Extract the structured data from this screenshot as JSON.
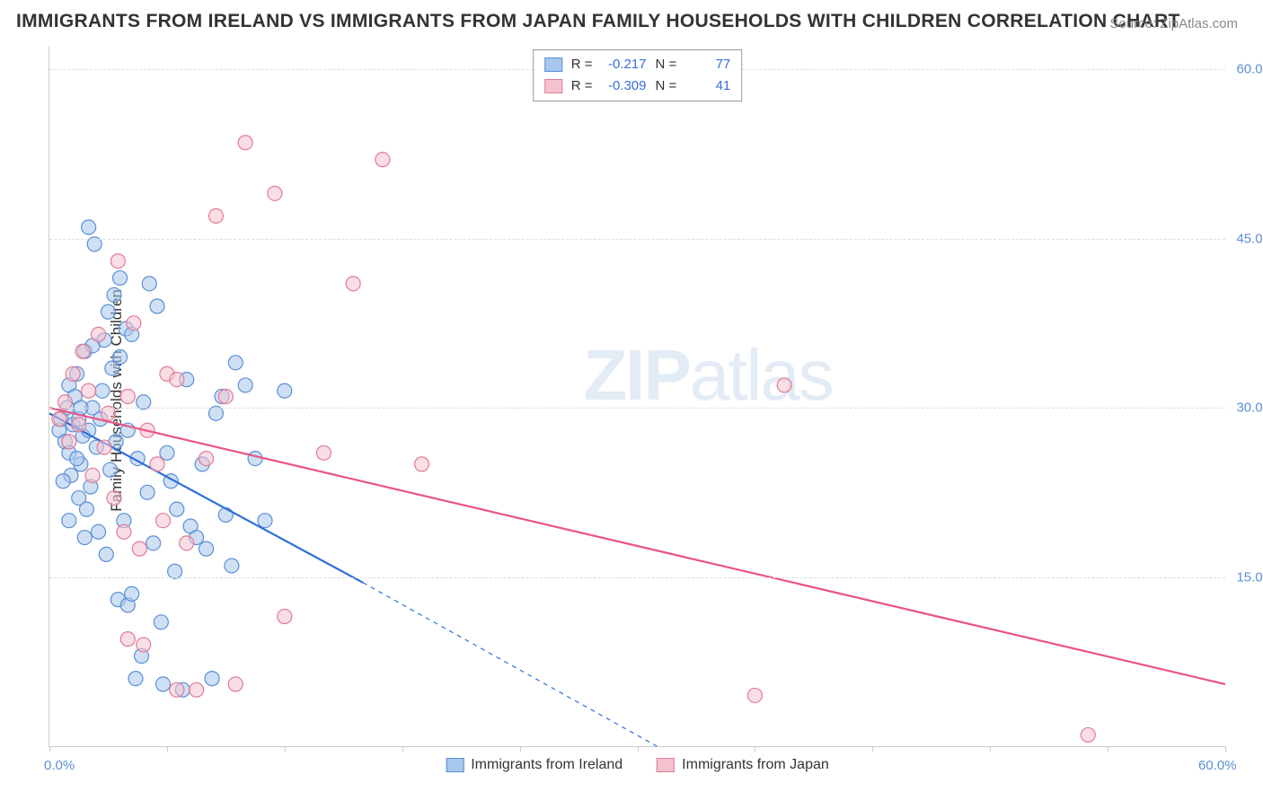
{
  "title": "IMMIGRANTS FROM IRELAND VS IMMIGRANTS FROM JAPAN FAMILY HOUSEHOLDS WITH CHILDREN CORRELATION CHART",
  "source": "Source: ZipAtlas.com",
  "y_axis_label": "Family Households with Children",
  "watermark_bold": "ZIP",
  "watermark_rest": "atlas",
  "chart": {
    "type": "scatter",
    "xlim": [
      0,
      60
    ],
    "ylim": [
      0,
      62
    ],
    "x_ticks": [
      0,
      6,
      12,
      18,
      24,
      30,
      36,
      42,
      48,
      54,
      60
    ],
    "x_tick_labels": {
      "0": "0.0%",
      "60": "60.0%"
    },
    "y_ticks": [
      15,
      30,
      45,
      60
    ],
    "y_tick_labels": {
      "15": "15.0%",
      "30": "30.0%",
      "45": "45.0%",
      "60": "60.0%"
    },
    "background_color": "#ffffff",
    "grid_color": "#dddddd",
    "marker_radius": 8,
    "marker_opacity": 0.55,
    "marker_stroke_width": 1.2,
    "series": [
      {
        "name": "Immigrants from Ireland",
        "fill_color": "#a7c7ec",
        "stroke_color": "#5b8fd6",
        "line_color": "#2e6fd8",
        "R": "-0.217",
        "N": "77",
        "trend_line": {
          "x1": 0,
          "y1": 29.5,
          "x2": 16,
          "y2": 14.5
        },
        "trend_line_ext": {
          "x1": 16,
          "y1": 14.5,
          "x2": 31,
          "y2": 0
        },
        "line_width": 2.2,
        "points": [
          [
            0.5,
            28
          ],
          [
            0.6,
            29
          ],
          [
            0.8,
            27
          ],
          [
            0.9,
            30
          ],
          [
            1.0,
            26
          ],
          [
            1.0,
            32
          ],
          [
            1.1,
            24
          ],
          [
            1.2,
            28.5
          ],
          [
            1.3,
            31
          ],
          [
            1.4,
            33
          ],
          [
            1.5,
            22
          ],
          [
            1.5,
            29
          ],
          [
            1.6,
            25
          ],
          [
            1.7,
            27.5
          ],
          [
            1.8,
            35
          ],
          [
            1.9,
            21
          ],
          [
            2.0,
            28
          ],
          [
            2.0,
            46
          ],
          [
            2.1,
            23
          ],
          [
            2.2,
            30
          ],
          [
            2.3,
            44.5
          ],
          [
            2.4,
            26.5
          ],
          [
            2.5,
            19
          ],
          [
            2.6,
            29
          ],
          [
            2.7,
            31.5
          ],
          [
            2.8,
            36
          ],
          [
            2.9,
            17
          ],
          [
            3.0,
            38.5
          ],
          [
            3.1,
            24.5
          ],
          [
            3.2,
            33.5
          ],
          [
            3.3,
            40
          ],
          [
            3.4,
            27
          ],
          [
            3.5,
            13
          ],
          [
            3.6,
            34.5
          ],
          [
            3.8,
            20
          ],
          [
            3.9,
            37
          ],
          [
            4.0,
            12.5
          ],
          [
            4.0,
            28
          ],
          [
            4.2,
            36.5
          ],
          [
            4.4,
            6
          ],
          [
            4.5,
            25.5
          ],
          [
            4.7,
            8
          ],
          [
            4.8,
            30.5
          ],
          [
            5.0,
            22.5
          ],
          [
            5.1,
            41
          ],
          [
            5.3,
            18
          ],
          [
            5.5,
            39
          ],
          [
            5.7,
            11
          ],
          [
            5.8,
            5.5
          ],
          [
            6.0,
            26
          ],
          [
            6.2,
            23.5
          ],
          [
            6.4,
            15.5
          ],
          [
            6.5,
            21
          ],
          [
            6.8,
            5
          ],
          [
            7.0,
            32.5
          ],
          [
            7.2,
            19.5
          ],
          [
            7.5,
            18.5
          ],
          [
            7.8,
            25
          ],
          [
            8.0,
            17.5
          ],
          [
            8.3,
            6
          ],
          [
            8.5,
            29.5
          ],
          [
            8.8,
            31
          ],
          [
            9.0,
            20.5
          ],
          [
            9.3,
            16
          ],
          [
            9.5,
            34
          ],
          [
            10.0,
            32
          ],
          [
            10.5,
            25.5
          ],
          [
            11.0,
            20
          ],
          [
            12.0,
            31.5
          ],
          [
            3.6,
            41.5
          ],
          [
            4.2,
            13.5
          ],
          [
            1.4,
            25.5
          ],
          [
            2.2,
            35.5
          ],
          [
            1.8,
            18.5
          ],
          [
            0.7,
            23.5
          ],
          [
            1.0,
            20
          ],
          [
            1.6,
            30
          ]
        ]
      },
      {
        "name": "Immigrants from Japan",
        "fill_color": "#f5c2cf",
        "stroke_color": "#e27a95",
        "line_color": "#e95585",
        "R": "-0.309",
        "N": "41",
        "trend_line": {
          "x1": 0,
          "y1": 30,
          "x2": 60,
          "y2": 5.5
        },
        "line_width": 2.2,
        "points": [
          [
            0.5,
            29
          ],
          [
            0.8,
            30.5
          ],
          [
            1.0,
            27
          ],
          [
            1.2,
            33
          ],
          [
            1.5,
            28.5
          ],
          [
            1.7,
            35
          ],
          [
            2.0,
            31.5
          ],
          [
            2.2,
            24
          ],
          [
            2.5,
            36.5
          ],
          [
            2.8,
            26.5
          ],
          [
            3.0,
            29.5
          ],
          [
            3.3,
            22
          ],
          [
            3.5,
            43
          ],
          [
            3.8,
            19
          ],
          [
            4.0,
            31
          ],
          [
            4.3,
            37.5
          ],
          [
            4.6,
            17.5
          ],
          [
            4.8,
            9
          ],
          [
            5.0,
            28
          ],
          [
            5.5,
            25
          ],
          [
            5.8,
            20
          ],
          [
            6.0,
            33
          ],
          [
            6.5,
            32.5
          ],
          [
            7.0,
            18
          ],
          [
            7.5,
            5
          ],
          [
            8.0,
            25.5
          ],
          [
            8.5,
            47
          ],
          [
            9.0,
            31
          ],
          [
            9.5,
            5.5
          ],
          [
            10.0,
            53.5
          ],
          [
            11.5,
            49
          ],
          [
            12.0,
            11.5
          ],
          [
            14.0,
            26
          ],
          [
            15.5,
            41
          ],
          [
            17.0,
            52
          ],
          [
            19.0,
            25
          ],
          [
            36.0,
            4.5
          ],
          [
            37.5,
            32
          ],
          [
            53.0,
            1
          ],
          [
            4.0,
            9.5
          ],
          [
            6.5,
            5
          ]
        ]
      }
    ]
  },
  "legend_top_labels": {
    "R": "R =",
    "N": "N ="
  },
  "legend_bottom": [
    {
      "swatch_fill": "#a7c7ec",
      "swatch_stroke": "#5b8fd6",
      "label": "Immigrants from Ireland"
    },
    {
      "swatch_fill": "#f5c2cf",
      "swatch_stroke": "#e27a95",
      "label": "Immigrants from Japan"
    }
  ]
}
